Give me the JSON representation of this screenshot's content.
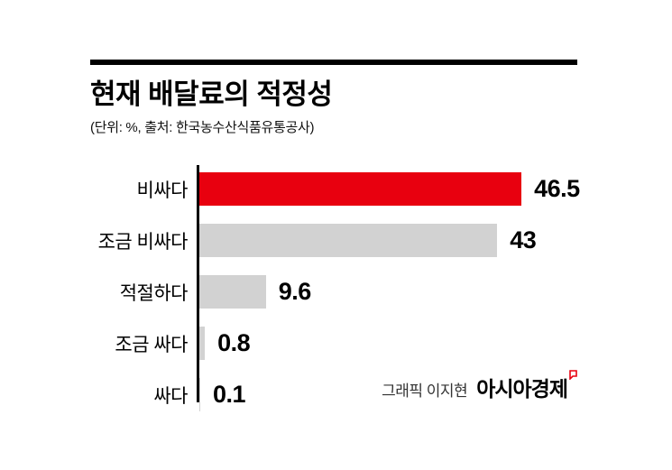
{
  "header": {
    "title": "현재 배달료의 적정성",
    "subtitle": "(단위: %, 출처: 한국농수산식품유통공사)"
  },
  "chart_data": {
    "type": "bar",
    "orientation": "horizontal",
    "title": "현재 배달료의 적정성",
    "unit": "%",
    "source": "한국농수산식품유통공사",
    "categories": [
      "비싸다",
      "조금 비싸다",
      "적절하다",
      "조금 싸다",
      "싸다"
    ],
    "values": [
      46.5,
      43,
      9.6,
      0.8,
      0.1
    ],
    "value_labels": [
      "46.5",
      "43",
      "9.6",
      "0.8",
      "0.1"
    ],
    "xlim": [
      0,
      50
    ],
    "grid": false,
    "legend": false,
    "highlight_index": 0,
    "highlight_color": "#e8000f",
    "bar_color": "#d2d2d2",
    "axis_color": "#000000"
  },
  "footer": {
    "credit": "그래픽 이지현",
    "brand": "아시아경제"
  }
}
